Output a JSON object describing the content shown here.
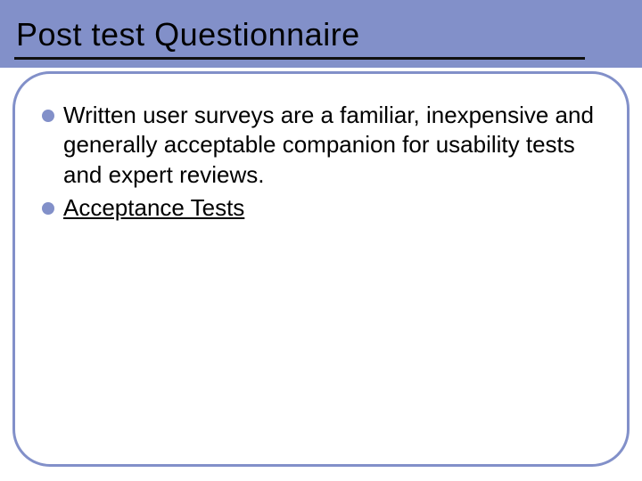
{
  "slide": {
    "title": "Post test Questionnaire",
    "title_fontsize": 36,
    "title_color": "#000000",
    "underline_color": "#101010",
    "band_color": "#8290c9",
    "box_border_color": "#8290c9",
    "box_border_radius": 42,
    "box_border_width": 3,
    "background_color": "#ffffff",
    "bullet_color": "#8290c9",
    "bullet_fontsize": 26,
    "bullets": [
      {
        "text": "Written user surveys are a familiar, inexpensive and generally acceptable companion for usability tests and expert reviews.",
        "is_link": false
      },
      {
        "text": "Acceptance Tests",
        "is_link": true
      }
    ]
  }
}
